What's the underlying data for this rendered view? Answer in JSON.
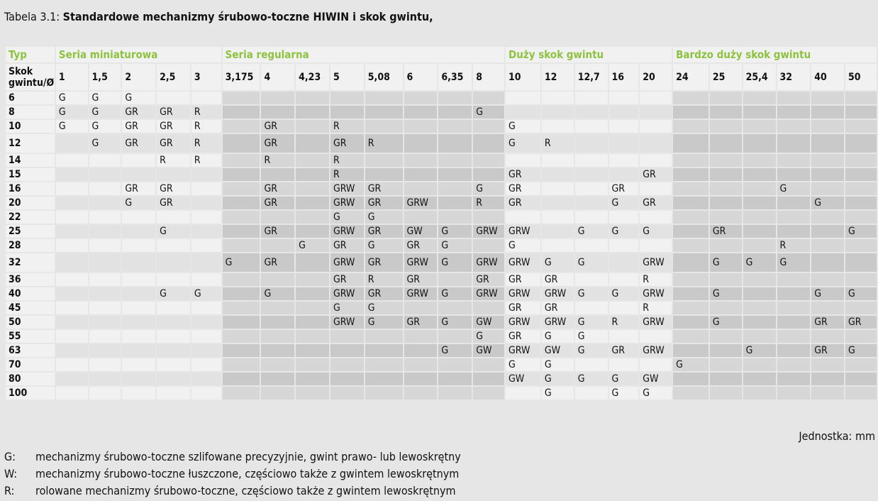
{
  "title": {
    "label": "Tabela 3.1: ",
    "text": "Standardowe mechanizmy śrubowo-toczne HIWIN i skok gwintu,"
  },
  "table": {
    "corner_label": "Typ",
    "row_header_label": "Skok gwintu/Ø",
    "groups": [
      {
        "label": "Seria miniaturowa",
        "span": 5,
        "shade": "white"
      },
      {
        "label": "Seria regularna",
        "span": 8,
        "shade": "gray"
      },
      {
        "label": "Duży skok gwintu",
        "span": 5,
        "shade": "white"
      },
      {
        "label": "Bardzo duży skok gwintu",
        "span": 6,
        "shade": "gray"
      }
    ],
    "columns": [
      "1",
      "1,5",
      "2",
      "2,5",
      "3",
      "3,175",
      "4",
      "4,23",
      "5",
      "5,08",
      "6",
      "6,35",
      "8",
      "10",
      "12",
      "12,7",
      "16",
      "20",
      "24",
      "25",
      "25,4",
      "32",
      "40",
      "50"
    ],
    "rows": [
      {
        "label": "6",
        "cells": [
          "G",
          "G",
          "G",
          "",
          "",
          "",
          "",
          "",
          "",
          "",
          "",
          "",
          "",
          "",
          "",
          "",
          "",
          "",
          "",
          "",
          "",
          "",
          "",
          ""
        ]
      },
      {
        "label": "8",
        "cells": [
          "G",
          "G",
          "GR",
          "GR",
          "R",
          "",
          "",
          "",
          "",
          "",
          "",
          "",
          "G",
          "",
          "",
          "",
          "",
          "",
          "",
          "",
          "",
          "",
          "",
          ""
        ]
      },
      {
        "label": "10",
        "cells": [
          "G",
          "G",
          "GR",
          "GR",
          "R",
          "",
          "GR",
          "",
          "R",
          "",
          "",
          "",
          "",
          "G",
          "",
          "",
          "",
          "",
          "",
          "",
          "",
          "",
          "",
          ""
        ]
      },
      {
        "label": "12",
        "cells": [
          "",
          "G",
          "GR",
          "GR",
          "R",
          "",
          "GR",
          "",
          "GR",
          "R",
          "",
          "",
          "",
          "G",
          "R",
          "",
          "",
          "",
          "",
          "",
          "",
          "",
          "",
          ""
        ]
      },
      {
        "label": "14",
        "cells": [
          "",
          "",
          "",
          "R",
          "R",
          "",
          "R",
          "",
          "R",
          "",
          "",
          "",
          "",
          "",
          "",
          "",
          "",
          "",
          "",
          "",
          "",
          "",
          "",
          ""
        ]
      },
      {
        "label": "15",
        "cells": [
          "",
          "",
          "",
          "",
          "",
          "",
          "",
          "",
          "R",
          "",
          "",
          "",
          "",
          "GR",
          "",
          "",
          "",
          "GR",
          "",
          "",
          "",
          "",
          "",
          ""
        ]
      },
      {
        "label": "16",
        "cells": [
          "",
          "",
          "GR",
          "GR",
          "",
          "",
          "GR",
          "",
          "GRW",
          "GR",
          "",
          "",
          "G",
          "GR",
          "",
          "",
          "GR",
          "",
          "",
          "",
          "",
          "G",
          "",
          ""
        ]
      },
      {
        "label": "20",
        "cells": [
          "",
          "",
          "G",
          "GR",
          "",
          "",
          "GR",
          "",
          "GRW",
          "GR",
          "GRW",
          "",
          "R",
          "GR",
          "",
          "",
          "G",
          "GR",
          "",
          "",
          "",
          "",
          "G",
          ""
        ]
      },
      {
        "label": "22",
        "cells": [
          "",
          "",
          "",
          "",
          "",
          "",
          "",
          "",
          "G",
          "G",
          "",
          "",
          "",
          "",
          "",
          "",
          "",
          "",
          "",
          "",
          "",
          "",
          "",
          ""
        ]
      },
      {
        "label": "25",
        "cells": [
          "",
          "",
          "",
          "G",
          "",
          "",
          "GR",
          "",
          "GRW",
          "GR",
          "GW",
          "G",
          "GRW",
          "GRW",
          "",
          "G",
          "G",
          "G",
          "",
          "GR",
          "",
          "",
          "",
          "G"
        ]
      },
      {
        "label": "28",
        "cells": [
          "",
          "",
          "",
          "",
          "",
          "",
          "",
          "G",
          "GR",
          "G",
          "GR",
          "G",
          "",
          "G",
          "",
          "",
          "",
          "",
          "",
          "",
          "",
          "R",
          "",
          ""
        ]
      },
      {
        "label": "32",
        "cells": [
          "",
          "",
          "",
          "",
          "",
          "G",
          "GR",
          "",
          "GRW",
          "GR",
          "GRW",
          "G",
          "GRW",
          "GRW",
          "G",
          "G",
          "",
          "GRW",
          "",
          "G",
          "G",
          "G",
          "",
          ""
        ]
      },
      {
        "label": "36",
        "cells": [
          "",
          "",
          "",
          "",
          "",
          "",
          "",
          "",
          "GR",
          "R",
          "GR",
          "",
          "GR",
          "GR",
          "GR",
          "",
          "",
          "R",
          "",
          "",
          "",
          "",
          "",
          ""
        ]
      },
      {
        "label": "40",
        "cells": [
          "",
          "",
          "",
          "G",
          "G",
          "",
          "G",
          "",
          "GRW",
          "GR",
          "GRW",
          "G",
          "GRW",
          "GRW",
          "GRW",
          "G",
          "G",
          "GRW",
          "",
          "G",
          "",
          "",
          "G",
          "G"
        ]
      },
      {
        "label": "45",
        "cells": [
          "",
          "",
          "",
          "",
          "",
          "",
          "",
          "",
          "G",
          "G",
          "",
          "",
          "",
          "GR",
          "GR",
          "",
          "",
          "R",
          "",
          "",
          "",
          "",
          "",
          ""
        ]
      },
      {
        "label": "50",
        "cells": [
          "",
          "",
          "",
          "",
          "",
          "",
          "",
          "",
          "GRW",
          "G",
          "GR",
          "G",
          "GW",
          "GRW",
          "GRW",
          "G",
          "R",
          "GRW",
          "",
          "G",
          "",
          "",
          "GR",
          "GR"
        ]
      },
      {
        "label": "55",
        "cells": [
          "",
          "",
          "",
          "",
          "",
          "",
          "",
          "",
          "",
          "",
          "",
          "",
          "G",
          "GR",
          "G",
          "G",
          "",
          "",
          "",
          "",
          "",
          "",
          "",
          ""
        ]
      },
      {
        "label": "63",
        "cells": [
          "",
          "",
          "",
          "",
          "",
          "",
          "",
          "",
          "",
          "",
          "",
          "G",
          "GW",
          "GRW",
          "GW",
          "G",
          "GR",
          "GRW",
          "",
          "",
          "G",
          "",
          "GR",
          "G"
        ]
      },
      {
        "label": "70",
        "cells": [
          "",
          "",
          "",
          "",
          "",
          "",
          "",
          "",
          "",
          "",
          "",
          "",
          "",
          "G",
          "G",
          "",
          "",
          "",
          "G",
          "",
          "",
          "",
          "",
          ""
        ]
      },
      {
        "label": "80",
        "cells": [
          "",
          "",
          "",
          "",
          "",
          "",
          "",
          "",
          "",
          "",
          "",
          "",
          "",
          "GW",
          "G",
          "G",
          "G",
          "GW",
          "",
          "",
          "",
          "",
          "",
          ""
        ]
      },
      {
        "label": "100",
        "cells": [
          "",
          "",
          "",
          "",
          "",
          "",
          "",
          "",
          "",
          "",
          "",
          "",
          "",
          "",
          "G",
          "",
          "G",
          "G",
          "",
          "",
          "",
          "",
          "",
          ""
        ]
      }
    ]
  },
  "unit": "Jednostka: mm",
  "legend": [
    {
      "key": "G:",
      "text": "mechanizmy śrubowo-toczne szlifowane precyzyjnie, gwint prawo- lub lewoskrętny"
    },
    {
      "key": "W:",
      "text": "mechanizmy śrubowo-toczne łuszczone, częściowo także z gwintem lewoskrętnym"
    },
    {
      "key": "R:",
      "text": "rolowane mechanizmy śrubowo-toczne, częściowo także z gwintem lewoskrętnym"
    }
  ]
}
